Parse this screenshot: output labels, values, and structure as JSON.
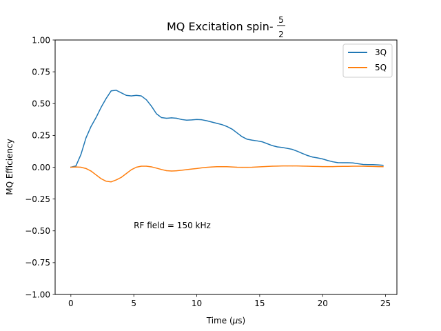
{
  "chart_data": {
    "type": "line",
    "title_prefix": "MQ Excitation spin-",
    "title_frac_num": "5",
    "title_frac_den": "2",
    "xlabel_prefix": "Time (",
    "xlabel_mu": "μ",
    "xlabel_suffix": "s)",
    "ylabel": "MQ Efficiency",
    "xlim": [
      -1.25,
      25.9
    ],
    "ylim": [
      -1.0,
      1.0
    ],
    "xticks": [
      0,
      5,
      10,
      15,
      20,
      25
    ],
    "xtick_labels": [
      "0",
      "5",
      "10",
      "15",
      "20",
      "25"
    ],
    "yticks": [
      -1.0,
      -0.75,
      -0.5,
      -0.25,
      0.0,
      0.25,
      0.5,
      0.75,
      1.0
    ],
    "ytick_labels": [
      "−1.00",
      "−0.75",
      "−0.50",
      "−0.25",
      "0.00",
      "0.25",
      "0.50",
      "0.75",
      "1.00"
    ],
    "grid": false,
    "legend_position": "top-right",
    "annotation": {
      "text": "RF field = 150 kHz",
      "x": 5.0,
      "y": -0.48
    },
    "series": [
      {
        "name": "3Q",
        "color": "#1f77b4",
        "x": [
          0,
          0.4,
          0.8,
          1.2,
          1.6,
          2.0,
          2.4,
          2.8,
          3.2,
          3.6,
          4.0,
          4.4,
          4.8,
          5.2,
          5.6,
          6.0,
          6.4,
          6.8,
          7.2,
          7.6,
          8.0,
          8.4,
          8.8,
          9.2,
          9.6,
          10.0,
          10.4,
          10.8,
          11.2,
          11.6,
          12.0,
          12.4,
          12.8,
          13.2,
          13.6,
          14.0,
          14.4,
          14.8,
          15.2,
          15.6,
          16.0,
          16.4,
          16.8,
          17.2,
          17.6,
          18.0,
          18.4,
          18.8,
          19.2,
          19.6,
          20.0,
          20.4,
          20.8,
          21.2,
          21.6,
          22.0,
          22.4,
          22.8,
          23.2,
          23.6,
          24.0,
          24.4,
          24.8
        ],
        "y": [
          0.0,
          0.01,
          0.1,
          0.23,
          0.32,
          0.39,
          0.47,
          0.54,
          0.6,
          0.605,
          0.585,
          0.565,
          0.56,
          0.565,
          0.56,
          0.53,
          0.48,
          0.42,
          0.39,
          0.385,
          0.388,
          0.385,
          0.375,
          0.37,
          0.372,
          0.375,
          0.373,
          0.365,
          0.355,
          0.345,
          0.335,
          0.32,
          0.3,
          0.27,
          0.24,
          0.22,
          0.213,
          0.207,
          0.2,
          0.185,
          0.17,
          0.16,
          0.155,
          0.148,
          0.14,
          0.125,
          0.108,
          0.092,
          0.08,
          0.073,
          0.065,
          0.053,
          0.043,
          0.036,
          0.035,
          0.035,
          0.034,
          0.028,
          0.022,
          0.02,
          0.02,
          0.018,
          0.015
        ]
      },
      {
        "name": "5Q",
        "color": "#ff7f0e",
        "x": [
          0,
          0.4,
          0.8,
          1.2,
          1.6,
          2.0,
          2.4,
          2.8,
          3.2,
          3.6,
          4.0,
          4.4,
          4.8,
          5.2,
          5.6,
          6.0,
          6.4,
          6.8,
          7.2,
          7.6,
          8.0,
          8.4,
          8.8,
          9.2,
          9.6,
          10.0,
          10.4,
          10.8,
          11.2,
          11.6,
          12.0,
          12.4,
          12.8,
          13.2,
          13.6,
          14.0,
          14.4,
          14.8,
          15.2,
          15.6,
          16.0,
          16.4,
          16.8,
          17.2,
          17.6,
          18.0,
          18.4,
          18.8,
          19.2,
          19.6,
          20.0,
          20.4,
          20.8,
          21.2,
          21.6,
          22.0,
          22.4,
          22.8,
          23.2,
          23.6,
          24.0,
          24.4,
          24.8
        ],
        "y": [
          0.0,
          0.002,
          0.0,
          -0.01,
          -0.03,
          -0.06,
          -0.09,
          -0.11,
          -0.115,
          -0.1,
          -0.08,
          -0.05,
          -0.02,
          0.0,
          0.008,
          0.008,
          0.003,
          -0.007,
          -0.018,
          -0.027,
          -0.03,
          -0.028,
          -0.024,
          -0.019,
          -0.014,
          -0.01,
          -0.005,
          -0.001,
          0.002,
          0.004,
          0.004,
          0.004,
          0.002,
          0.0,
          -0.001,
          -0.001,
          0.0,
          0.002,
          0.004,
          0.006,
          0.008,
          0.009,
          0.01,
          0.01,
          0.01,
          0.01,
          0.009,
          0.008,
          0.007,
          0.006,
          0.005,
          0.005,
          0.005,
          0.006,
          0.007,
          0.007,
          0.008,
          0.008,
          0.008,
          0.007,
          0.006,
          0.005,
          0.004
        ]
      }
    ]
  }
}
